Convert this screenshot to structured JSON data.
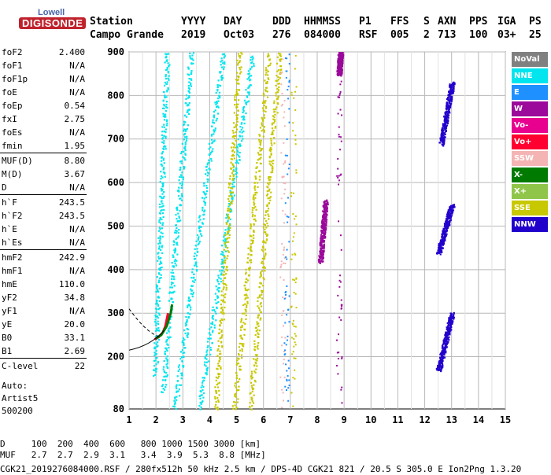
{
  "logo": {
    "line1": "Lowell",
    "line2": "DIGISONDE"
  },
  "header": {
    "labels": [
      "Station",
      "YYYY",
      "DAY",
      "DDD",
      "HHMMSS",
      "P1",
      "FFS",
      "S",
      "AXN",
      "PPS",
      "IGA",
      "PS"
    ],
    "values": [
      "Campo Grande",
      "2019",
      "Oct03",
      "276",
      "084000",
      "RSF",
      "005",
      "2",
      "713",
      "100",
      "03+",
      "25"
    ]
  },
  "params": [
    {
      "k": "foF2",
      "v": "2.400"
    },
    {
      "k": "foF1",
      "v": "N/A"
    },
    {
      "k": "foF1p",
      "v": "N/A"
    },
    {
      "k": "foE",
      "v": "N/A"
    },
    {
      "k": "foEp",
      "v": "0.54"
    },
    {
      "k": "fxI",
      "v": "2.75"
    },
    {
      "k": "foEs",
      "v": "N/A"
    },
    {
      "k": "fmin",
      "v": "1.95"
    },
    {
      "k": "MUF(D)",
      "v": "8.80"
    },
    {
      "k": "M(D)",
      "v": "3.67"
    },
    {
      "k": "D",
      "v": "N/A"
    },
    {
      "k": "h`F",
      "v": "243.5"
    },
    {
      "k": "h`F2",
      "v": "243.5"
    },
    {
      "k": "h`E",
      "v": "N/A"
    },
    {
      "k": "h`Es",
      "v": "N/A"
    },
    {
      "k": "hmF2",
      "v": "242.9"
    },
    {
      "k": "hmF1",
      "v": "N/A"
    },
    {
      "k": "hmE",
      "v": "110.0"
    },
    {
      "k": "yF2",
      "v": "34.8"
    },
    {
      "k": "yF1",
      "v": "N/A"
    },
    {
      "k": "yE",
      "v": "20.0"
    },
    {
      "k": "B0",
      "v": "33.1"
    },
    {
      "k": "B1",
      "v": "2.69"
    },
    {
      "k": "C-level",
      "v": "22"
    }
  ],
  "auto": {
    "line1": "Auto:",
    "line2": "Artist5",
    "line3": "500200"
  },
  "legend": [
    {
      "name": "NoVal",
      "color": "#808080"
    },
    {
      "name": "NNE",
      "color": "#00e5ee"
    },
    {
      "name": "E",
      "color": "#1e90ff"
    },
    {
      "name": "W",
      "color": "#9b0a9b"
    },
    {
      "name": "Vo-",
      "color": "#e8008f"
    },
    {
      "name": "Vo+",
      "color": "#ff0030"
    },
    {
      "name": "SSW",
      "color": "#f4b4b4"
    },
    {
      "name": "X-",
      "color": "#007a00"
    },
    {
      "name": "X+",
      "color": "#8fc64a"
    },
    {
      "name": "SSE",
      "color": "#c8c800"
    },
    {
      "name": "NNW",
      "color": "#2200cc"
    }
  ],
  "footer": {
    "d_row": "D     100  200  400  600   800 1000 1500 3000 [km]",
    "muf_row": "MUF   2.7  2.7  2.9  3.1   3.4  3.9  5.3  8.8 [MHz]",
    "info": "CGK21_2019276084000.RSF / 280fx512h 50 kHz 2.5 km / DPS-4D CGK21 821 / 20.5 S 305.0 E Ion2Png 1.3.20"
  },
  "chart_data": {
    "type": "scatter",
    "xlabel": "",
    "ylabel": "",
    "xlim": [
      1,
      15
    ],
    "ylim": [
      80,
      900
    ],
    "xticks": [
      1,
      2,
      3,
      4,
      5,
      6,
      7,
      8,
      9,
      10,
      11,
      12,
      13,
      14,
      15
    ],
    "yticks": [
      80,
      200,
      300,
      400,
      500,
      600,
      700,
      800,
      900
    ],
    "grid": true,
    "legend_position": "right",
    "series": [
      {
        "name": "NNE",
        "traces": [
          {
            "x0": 1.95,
            "x1": 2.4,
            "ymin": 160,
            "ymax": 900
          },
          {
            "x0": 2.25,
            "x1": 3.3,
            "ymin": 120,
            "ymax": 900
          },
          {
            "x0": 2.7,
            "x1": 4.5,
            "ymin": 85,
            "ymax": 900
          },
          {
            "x0": 3.6,
            "x1": 5.6,
            "ymin": 80,
            "ymax": 900
          }
        ]
      },
      {
        "name": "SSE",
        "traces": [
          {
            "x0": 4.2,
            "x1": 5.1,
            "ymin": 80,
            "ymax": 900
          },
          {
            "x0": 4.9,
            "x1": 6.2,
            "ymin": 80,
            "ymax": 900
          },
          {
            "x0": 5.5,
            "x1": 6.6,
            "ymin": 80,
            "ymax": 900
          }
        ]
      },
      {
        "name": "NNW",
        "traces": [
          {
            "x0": 12.5,
            "x1": 13.0,
            "ymin": 170,
            "ymax": 300
          },
          {
            "x0": 12.5,
            "x1": 13.0,
            "ymin": 440,
            "ymax": 550
          },
          {
            "x0": 12.6,
            "x1": 13.0,
            "ymin": 690,
            "ymax": 830
          }
        ]
      },
      {
        "name": "W",
        "traces": [
          {
            "x0": 8.1,
            "x1": 8.3,
            "ymin": 420,
            "ymax": 560
          },
          {
            "x0": 8.8,
            "x1": 8.85,
            "ymin": 850,
            "ymax": 900
          }
        ]
      },
      {
        "name": "Vo+",
        "trace_xy": [
          [
            1.95,
            240
          ],
          [
            2.1,
            245
          ],
          [
            2.25,
            255
          ],
          [
            2.35,
            270
          ],
          [
            2.45,
            300
          ]
        ]
      },
      {
        "name": "X-",
        "trace_xy": [
          [
            2.0,
            242
          ],
          [
            2.2,
            250
          ],
          [
            2.4,
            270
          ],
          [
            2.55,
            300
          ],
          [
            2.6,
            320
          ]
        ]
      }
    ]
  }
}
